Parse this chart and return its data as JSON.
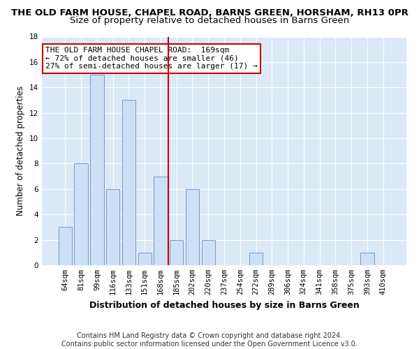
{
  "title": "THE OLD FARM HOUSE, CHAPEL ROAD, BARNS GREEN, HORSHAM, RH13 0PR",
  "subtitle": "Size of property relative to detached houses in Barns Green",
  "xlabel": "Distribution of detached houses by size in Barns Green",
  "ylabel": "Number of detached properties",
  "categories": [
    "64sqm",
    "81sqm",
    "99sqm",
    "116sqm",
    "133sqm",
    "151sqm",
    "168sqm",
    "185sqm",
    "202sqm",
    "220sqm",
    "237sqm",
    "254sqm",
    "272sqm",
    "289sqm",
    "306sqm",
    "324sqm",
    "341sqm",
    "358sqm",
    "375sqm",
    "393sqm",
    "410sqm"
  ],
  "values": [
    3,
    8,
    15,
    6,
    13,
    1,
    7,
    2,
    6,
    2,
    0,
    0,
    1,
    0,
    0,
    0,
    0,
    0,
    0,
    1,
    0
  ],
  "bar_color": "#cde0f5",
  "bar_edge_color": "#6b9fd4",
  "vline_x": 6.5,
  "vline_color": "#cc0000",
  "annotation_text": "THE OLD FARM HOUSE CHAPEL ROAD:  169sqm\n← 72% of detached houses are smaller (46)\n27% of semi-detached houses are larger (17) →",
  "annotation_box_color": "#ffffff",
  "annotation_box_edge": "#cc0000",
  "ylim": [
    0,
    18
  ],
  "yticks": [
    0,
    2,
    4,
    6,
    8,
    10,
    12,
    14,
    16,
    18
  ],
  "footer": "Contains HM Land Registry data © Crown copyright and database right 2024.\nContains public sector information licensed under the Open Government Licence v3.0.",
  "plot_bg_color": "#dce9f7",
  "title_fontsize": 9.5,
  "subtitle_fontsize": 9.5,
  "tick_fontsize": 7.5,
  "ylabel_fontsize": 8.5,
  "xlabel_fontsize": 9,
  "footer_fontsize": 7,
  "annotation_fontsize": 8
}
